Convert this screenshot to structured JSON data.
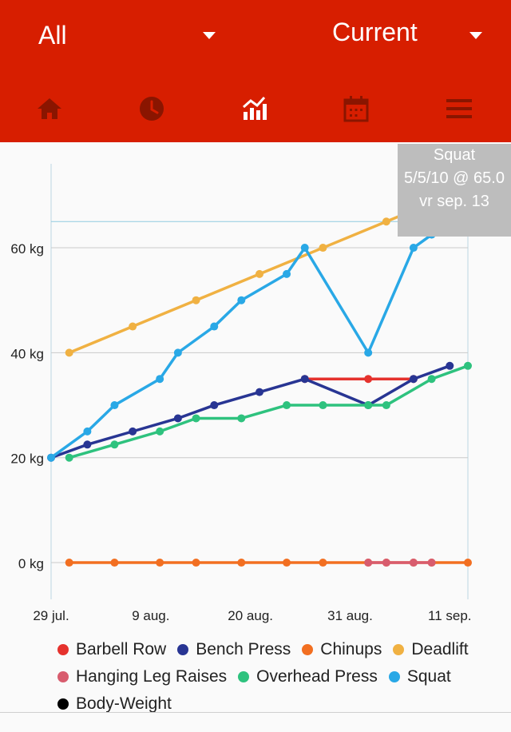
{
  "header": {
    "filter_dropdown": "All",
    "period_dropdown": "Current",
    "nav_icons": [
      "home-icon",
      "clock-icon",
      "chart-icon",
      "calendar-icon",
      "menu-icon"
    ]
  },
  "colors": {
    "header_bg": "#d71e00",
    "nav_icon": "#8a1500",
    "tooltip_bg": "#bdbdbd"
  },
  "tooltip": {
    "title": "Squat",
    "detail": "5/5/10 @ 65.0",
    "date": "vr sep. 13"
  },
  "chart_data": {
    "type": "line",
    "y_ticks": [
      "0 kg",
      "20 kg",
      "40 kg",
      "60 kg"
    ],
    "x_ticks": [
      "29 jul.",
      "9 aug.",
      "20 aug.",
      "31 aug.",
      "11 sep."
    ],
    "ylim": [
      -7,
      76
    ],
    "xlim": [
      0,
      46
    ],
    "y_tick_values": [
      0,
      20,
      40,
      60
    ],
    "x_tick_values": [
      0,
      11,
      22,
      33,
      44
    ],
    "highlight_value": 65,
    "series": [
      {
        "name": "Barbell Row",
        "color": "#e5322d",
        "x": [
          28,
          35,
          40
        ],
        "y": [
          35,
          35,
          35
        ]
      },
      {
        "name": "Bench Press",
        "color": "#283593",
        "x": [
          0,
          4,
          9,
          14,
          18,
          23,
          28,
          35,
          40,
          44
        ],
        "y": [
          20,
          22.5,
          25,
          27.5,
          30,
          32.5,
          35,
          30,
          35,
          37.5
        ]
      },
      {
        "name": "Chinups",
        "color": "#f26f21",
        "x": [
          2,
          7,
          12,
          16,
          21,
          26,
          30,
          35,
          37,
          40,
          42,
          46
        ],
        "y": [
          0,
          0,
          0,
          0,
          0,
          0,
          0,
          0,
          0,
          0,
          0,
          0
        ]
      },
      {
        "name": "Deadlift",
        "color": "#f0b142",
        "x": [
          2,
          9,
          16,
          23,
          30,
          37,
          44
        ],
        "y": [
          40,
          45,
          50,
          55,
          60,
          65,
          70
        ]
      },
      {
        "name": "Hanging Leg Raises",
        "color": "#d85c6e",
        "x": [
          35,
          37,
          40,
          42
        ],
        "y": [
          0,
          0,
          0,
          0
        ]
      },
      {
        "name": "Overhead Press",
        "color": "#2ec27e",
        "x": [
          2,
          7,
          12,
          16,
          21,
          26,
          30,
          35,
          37,
          42,
          46
        ],
        "y": [
          20,
          22.5,
          25,
          27.5,
          27.5,
          30,
          30,
          30,
          30,
          35,
          37.5
        ]
      },
      {
        "name": "Squat",
        "color": "#29a8e6",
        "x": [
          0,
          4,
          7,
          12,
          14,
          18,
          21,
          26,
          28,
          35,
          40,
          42,
          44
        ],
        "y": [
          20,
          25,
          30,
          35,
          40,
          45,
          50,
          55,
          60,
          40,
          60,
          62.5,
          65
        ]
      },
      {
        "name": "Body-Weight",
        "color": "#000000",
        "x": [],
        "y": []
      }
    ]
  }
}
